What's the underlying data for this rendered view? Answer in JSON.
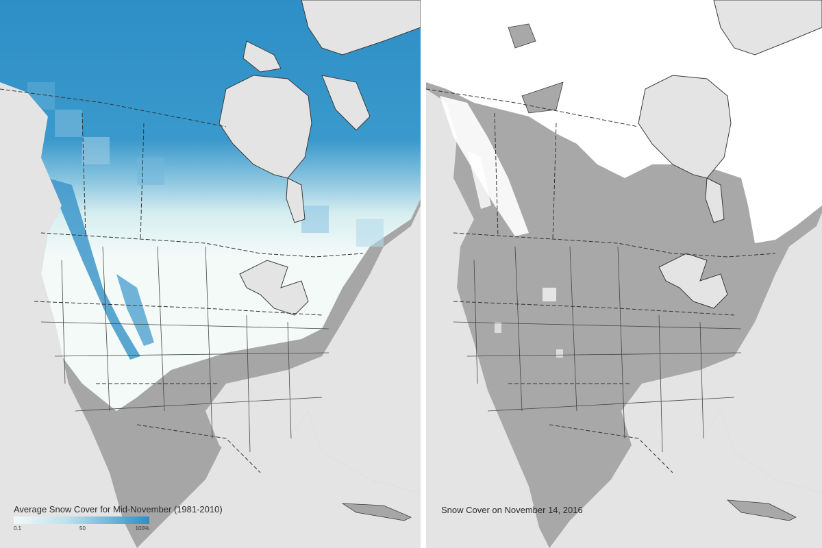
{
  "left_map": {
    "caption": "Average Snow Cover for Mid-November (1981-2010)",
    "legend": {
      "ticks": [
        "0.1",
        "50",
        "100%"
      ],
      "low_color": "#f2faf9",
      "mid_color": "#bde0ec",
      "high_color": "#2b8fc7"
    }
  },
  "right_map": {
    "caption": "Snow Cover on November 14, 2016",
    "snow_color": "#ffffff",
    "land_color": "#a8a8a8"
  },
  "colors": {
    "water": "#e4e4e4",
    "land": "#a8a8a8",
    "border": "#3a3a3a"
  }
}
